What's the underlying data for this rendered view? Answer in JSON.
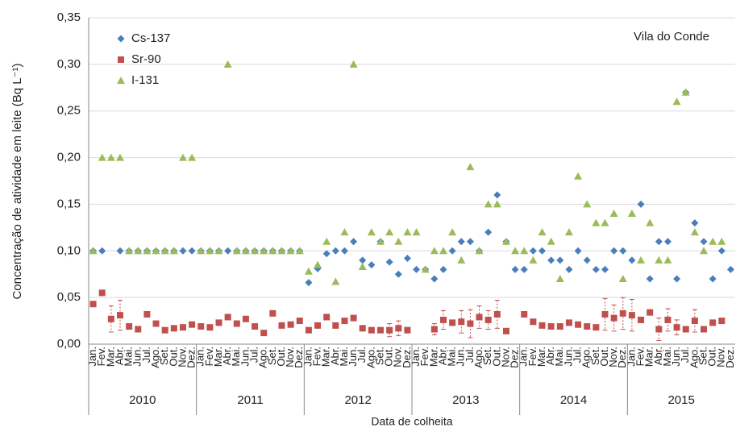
{
  "chart_data": {
    "type": "scatter",
    "y_label": "Concentração de atividade em leite (Bq L⁻¹)",
    "x_label": "Data de colheita",
    "annotation": "Vila do Conde",
    "ylim": [
      0,
      0.35
    ],
    "yticks": [
      {
        "value": 0,
        "label": "0,00"
      },
      {
        "value": 0.05,
        "label": "0,05"
      },
      {
        "value": 0.1,
        "label": "0,10"
      },
      {
        "value": 0.15,
        "label": "0,15"
      },
      {
        "value": 0.2,
        "label": "0,20"
      },
      {
        "value": 0.25,
        "label": "0,25"
      },
      {
        "value": 0.3,
        "label": "0,30"
      },
      {
        "value": 0.35,
        "label": "0,35"
      }
    ],
    "grid": true,
    "legend": "top-left",
    "groups": [
      "2010",
      "2011",
      "2012",
      "2013",
      "2014",
      "2015"
    ],
    "categories": [
      "Jan.",
      "Fev.",
      "Mar.",
      "Abr.",
      "Mai.",
      "Jun.",
      "Jul.",
      "Ago.",
      "Set.",
      "Out.",
      "Nov.",
      "Dez.",
      "Jan.",
      "Fev.",
      "Mar.",
      "Abr.",
      "Mai.",
      "Jun.",
      "Jul.",
      "Ago.",
      "Set.",
      "Out.",
      "Nov.",
      "Dez.",
      "Jan.",
      "Fev.",
      "Mar.",
      "Abr.",
      "Mai.",
      "Jun.",
      "Jul.",
      "Ago.",
      "Set.",
      "Out.",
      "Nov.",
      "Dez.",
      "Jan.",
      "Fev.",
      "Mar.",
      "Abr.",
      "Mai.",
      "Jun.",
      "Jul.",
      "Ago.",
      "Set.",
      "Out.",
      "Nov.",
      "Dez.",
      "Jan.",
      "Fev.",
      "Mar.",
      "Abr.",
      "Mai.",
      "Jun.",
      "Jul.",
      "Ago.",
      "Set.",
      "Out.",
      "Nov.",
      "Dez.",
      "Jan.",
      "Fev.",
      "Mar.",
      "Abr.",
      "Mai.",
      "Jun.",
      "Jul.",
      "Ago.",
      "Set.",
      "Out.",
      "Nov.",
      "Dez."
    ],
    "series": [
      {
        "name": "Cs-137",
        "color": "#4a7ebb",
        "marker": "diamond",
        "values": [
          0.1,
          0.1,
          null,
          0.1,
          0.1,
          0.1,
          0.1,
          0.1,
          0.1,
          0.1,
          0.1,
          0.1,
          0.1,
          0.1,
          0.1,
          0.1,
          0.1,
          0.1,
          0.1,
          0.1,
          0.1,
          0.1,
          0.1,
          0.1,
          0.066,
          0.081,
          0.097,
          0.1,
          0.1,
          0.11,
          0.09,
          0.085,
          0.11,
          0.088,
          0.075,
          0.092,
          0.08,
          0.08,
          0.07,
          0.08,
          0.1,
          0.11,
          0.11,
          0.1,
          0.12,
          0.16,
          0.11,
          0.08,
          0.08,
          0.1,
          0.1,
          0.09,
          0.09,
          0.08,
          0.1,
          0.09,
          0.08,
          0.08,
          0.1,
          0.1,
          0.09,
          0.15,
          0.07,
          0.11,
          0.11,
          0.07,
          0.27,
          0.13,
          0.11,
          0.07,
          0.1,
          0.08
        ]
      },
      {
        "name": "Sr-90",
        "color": "#c0504d",
        "marker": "square",
        "values": [
          0.043,
          0.055,
          0.027,
          0.031,
          0.019,
          0.016,
          0.032,
          0.022,
          0.015,
          0.017,
          0.018,
          0.021,
          0.019,
          0.018,
          0.023,
          0.029,
          0.022,
          0.027,
          0.019,
          0.012,
          0.033,
          0.02,
          0.021,
          0.025,
          0.015,
          0.02,
          0.029,
          0.02,
          0.025,
          0.028,
          0.017,
          0.015,
          0.015,
          0.015,
          0.017,
          0.015,
          null,
          null,
          0.016,
          0.026,
          0.023,
          0.024,
          0.022,
          0.029,
          0.026,
          0.032,
          0.014,
          null,
          0.032,
          0.024,
          0.02,
          0.019,
          0.019,
          0.023,
          0.021,
          0.019,
          0.018,
          0.032,
          0.028,
          0.033,
          0.031,
          0.026,
          0.034,
          0.016,
          0.026,
          0.018,
          0.016,
          0.025,
          0.016,
          0.023,
          0.025,
          null
        ],
        "errors": [
          null,
          null,
          0.014,
          0.016,
          null,
          null,
          null,
          null,
          null,
          null,
          null,
          null,
          null,
          null,
          null,
          null,
          null,
          null,
          null,
          null,
          null,
          null,
          null,
          null,
          null,
          null,
          null,
          null,
          null,
          null,
          null,
          null,
          null,
          0.007,
          0.008,
          null,
          null,
          null,
          0.006,
          0.01,
          null,
          0.012,
          0.015,
          0.012,
          0.01,
          0.015,
          null,
          null,
          null,
          null,
          null,
          null,
          null,
          null,
          null,
          null,
          null,
          0.017,
          0.014,
          0.017,
          0.017,
          null,
          null,
          0.012,
          0.012,
          0.008,
          null,
          0.012,
          null,
          null,
          null,
          null
        ]
      },
      {
        "name": "I-131",
        "color": "#9bbb59",
        "marker": "triangle",
        "values": [
          0.1,
          0.2,
          0.2,
          0.2,
          0.1,
          0.1,
          0.1,
          0.1,
          0.1,
          0.1,
          0.2,
          0.2,
          0.1,
          0.1,
          0.1,
          0.3,
          0.1,
          0.1,
          0.1,
          0.1,
          0.1,
          0.1,
          0.1,
          0.1,
          0.078,
          0.085,
          0.11,
          0.067,
          0.12,
          0.3,
          0.083,
          0.12,
          0.11,
          0.12,
          0.11,
          0.12,
          0.12,
          0.08,
          0.1,
          0.1,
          0.12,
          0.09,
          0.19,
          0.1,
          0.15,
          0.15,
          0.11,
          0.1,
          0.1,
          0.09,
          0.12,
          0.11,
          0.07,
          0.12,
          0.18,
          0.15,
          0.13,
          0.13,
          0.14,
          0.07,
          0.14,
          0.09,
          0.13,
          0.09,
          0.09,
          0.26,
          0.27,
          0.12,
          0.1,
          0.11,
          0.11,
          null
        ]
      }
    ]
  }
}
